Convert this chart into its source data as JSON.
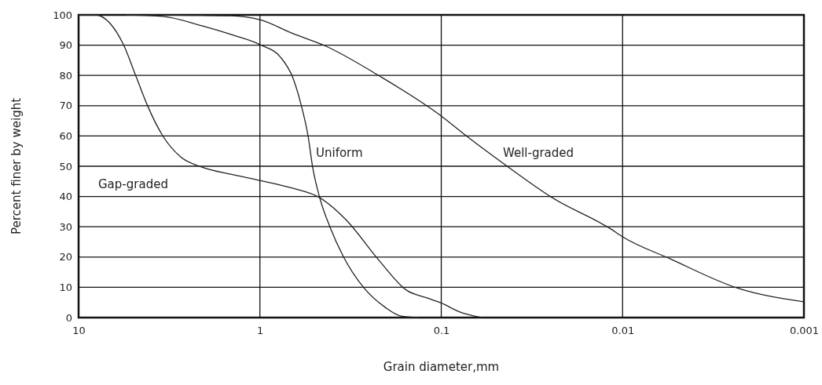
{
  "chart_data": {
    "type": "line",
    "xlabel": "Grain diameter,mm",
    "ylabel": "Percent finer by weight",
    "log": "x",
    "xlim": [
      10,
      0.001
    ],
    "xticks": [
      10,
      1,
      0.1,
      0.01,
      0.001
    ],
    "ylim": [
      0,
      100
    ],
    "yticks": [
      0,
      10,
      20,
      30,
      40,
      50,
      60,
      70,
      80,
      90,
      100
    ],
    "grid": true,
    "marker": "none",
    "line_style": "solid",
    "series": [
      {
        "name": "Gap-graded",
        "color": "#222222",
        "x": [
          10,
          8.03,
          6.71,
          5.66,
          4.83,
          4.2,
          3.44,
          2.74,
          2.09,
          1.4,
          1,
          0.656,
          0.468,
          0.336,
          0.219,
          0.156,
          0.12,
          0.1,
          0.08,
          0.06
        ],
        "values": [
          100,
          100,
          97.2,
          90.2,
          79.8,
          70.5,
          60.1,
          53.1,
          49.7,
          47.2,
          45.3,
          42.7,
          39.6,
          32.4,
          18.7,
          9.1,
          6.5,
          4.8,
          2,
          0
        ]
      },
      {
        "name": "Uniform",
        "color": "#222222",
        "x": [
          5.5,
          3.44,
          2.09,
          1.4,
          1,
          0.769,
          0.656,
          0.594,
          0.543,
          0.512,
          0.468,
          0.41,
          0.347,
          0.267,
          0.204,
          0.167,
          0.133
        ],
        "values": [
          100,
          99.5,
          96.4,
          93.3,
          90.2,
          86,
          79,
          70.5,
          60.1,
          49.7,
          39.6,
          29.8,
          20.2,
          9.8,
          3.4,
          0.5,
          0
        ]
      },
      {
        "name": "Well-graded",
        "color": "#222222",
        "x": [
          4.07,
          1.46,
          1,
          0.656,
          0.441,
          0.219,
          0.1,
          0.073,
          0.0426,
          0.0244,
          0.01164,
          0.01,
          0.00546,
          0.00229,
          0.001
        ],
        "values": [
          100,
          99.7,
          98.4,
          93.8,
          89.9,
          79.8,
          66.6,
          60.1,
          49.7,
          39.6,
          29.3,
          26.7,
          19.4,
          9.6,
          5.2
        ]
      }
    ]
  }
}
